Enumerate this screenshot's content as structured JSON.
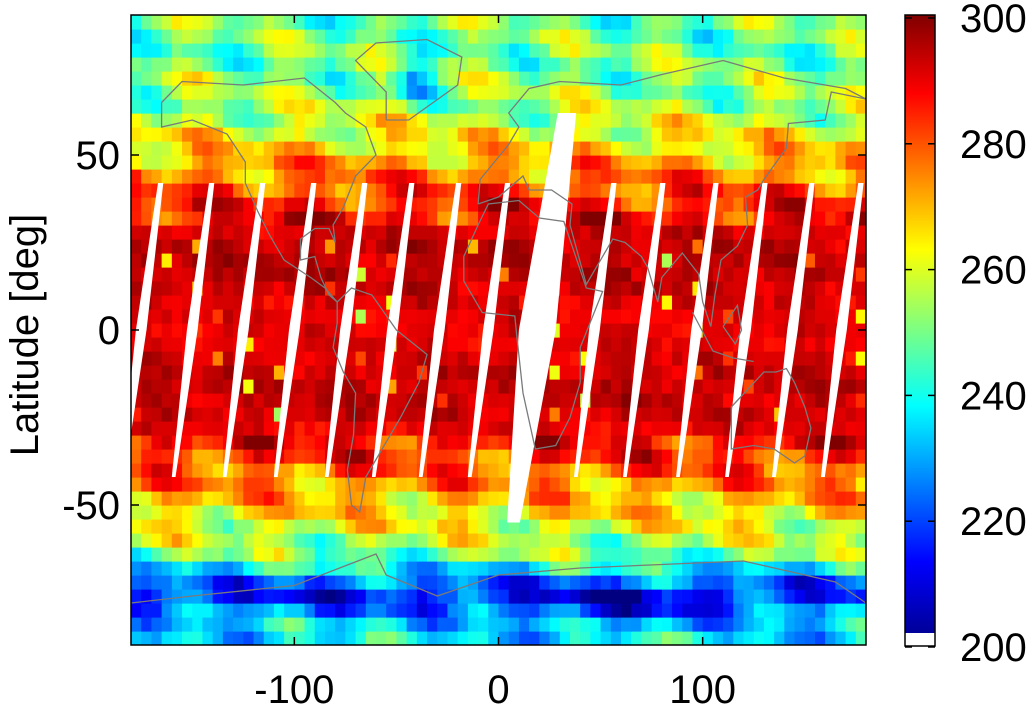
{
  "chart_data": {
    "type": "heatmap",
    "title": "",
    "xlabel": "",
    "ylabel": "Latitude [deg]",
    "xlim": [
      -180,
      180
    ],
    "ylim": [
      -90,
      90
    ],
    "xticks": [
      -100,
      0,
      100
    ],
    "xtick_labels": [
      "-100",
      "0",
      "100"
    ],
    "yticks": [
      -50,
      0,
      50
    ],
    "ytick_labels": [
      "-50",
      "0",
      "50"
    ],
    "grid": false,
    "colormap": "jet",
    "colorbar": {
      "min": 200,
      "max": 300,
      "ticks": [
        200,
        220,
        240,
        260,
        280,
        300
      ],
      "tick_labels": [
        "200",
        "220",
        "240",
        "260",
        "280",
        "300"
      ],
      "lowest_color": "#ffffff"
    },
    "values_description": "Gridded brightness temperature field (K) over global lon/lat. Tropics and subtropics (~40S–40N) are mostly 280–300, mid-latitudes 250–280 with swirling storm patterns, polar regions 210–250; Antarctic interior minimum about 200–215; Greenland about 220.",
    "approx_zonal_profile": {
      "lat": [
        -85,
        -75,
        -65,
        -55,
        -45,
        -35,
        -25,
        -15,
        -5,
        5,
        15,
        25,
        35,
        45,
        55,
        65,
        75,
        85
      ],
      "value": [
        236,
        212,
        248,
        262,
        272,
        285,
        292,
        294,
        290,
        290,
        294,
        294,
        286,
        275,
        262,
        252,
        250,
        248
      ]
    },
    "missing_data_swaths": {
      "description": "White diagonal gaps between satellite orbit swaths (no data)",
      "equator_crossing_longitudes": [
        -175,
        -150,
        -125,
        -100,
        -75,
        -52,
        -29,
        -5,
        19,
        47,
        71,
        97,
        121,
        144,
        168
      ]
    },
    "coastlines": "gray continental outlines",
    "colors": {
      "coastline": "#7a7a7a",
      "missing": "#ffffff",
      "axis": "#000000"
    }
  }
}
